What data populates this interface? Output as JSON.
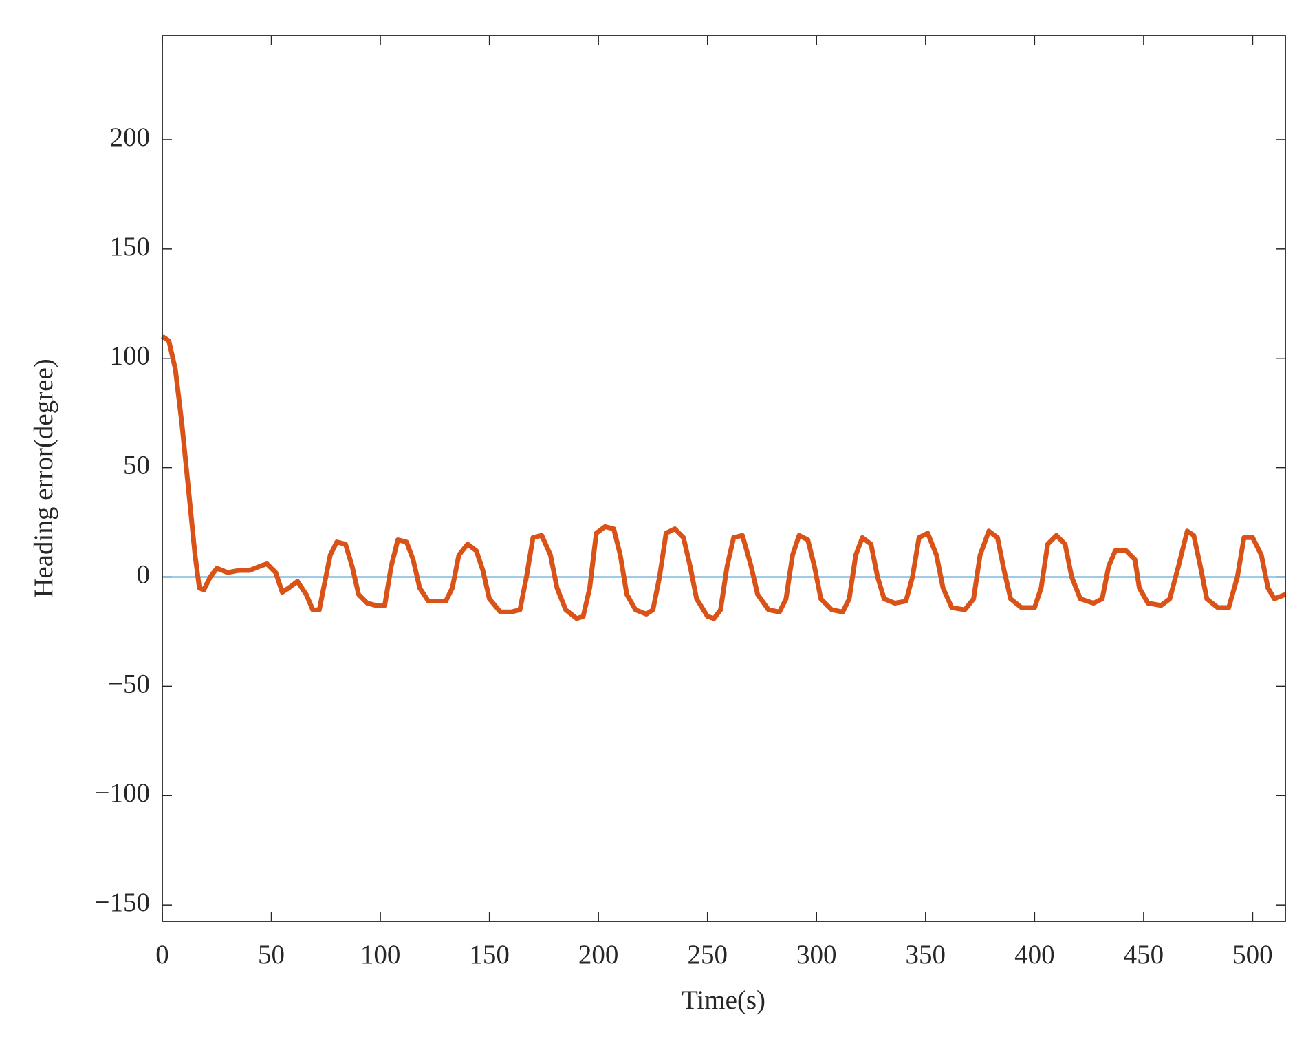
{
  "chart_data": {
    "type": "line",
    "xlabel": "Time(s)",
    "ylabel": "Heading error(degree)",
    "xlim": [
      0,
      515
    ],
    "ylim": [
      -157.5,
      247.5
    ],
    "xticks": [
      0,
      50,
      100,
      150,
      200,
      250,
      300,
      350,
      400,
      450,
      500
    ],
    "yticks": [
      {
        "value": -150,
        "label": "−150"
      },
      {
        "value": -100,
        "label": "−100"
      },
      {
        "value": -50,
        "label": "−50"
      },
      0,
      50,
      100,
      150,
      200
    ],
    "series": [
      {
        "color": "#0072bd",
        "x": [
          0,
          515
        ],
        "values": [
          0,
          0
        ]
      },
      {
        "color": "#d95319",
        "x": [
          0,
          3,
          6,
          9,
          12,
          15,
          17,
          19,
          22,
          25,
          30,
          35,
          40,
          45,
          48,
          52,
          55,
          58,
          62,
          66,
          69,
          72,
          74,
          77,
          80,
          84,
          87,
          90,
          94,
          98,
          102,
          105,
          108,
          112,
          115,
          118,
          122,
          126,
          130,
          133,
          136,
          140,
          144,
          147,
          150,
          155,
          160,
          164,
          167,
          170,
          174,
          178,
          181,
          185,
          190,
          193,
          196,
          199,
          203,
          207,
          210,
          213,
          217,
          222,
          225,
          228,
          231,
          235,
          239,
          242,
          245,
          250,
          253,
          256,
          259,
          262,
          266,
          270,
          273,
          278,
          283,
          286,
          289,
          292,
          296,
          299,
          302,
          307,
          312,
          315,
          318,
          321,
          325,
          328,
          331,
          336,
          341,
          344,
          347,
          351,
          355,
          358,
          362,
          368,
          372,
          375,
          379,
          383,
          386,
          389,
          394,
          400,
          403,
          406,
          410,
          414,
          417,
          421,
          427,
          431,
          434,
          437,
          442,
          446,
          448,
          452,
          458,
          462,
          466,
          470,
          473,
          476,
          479,
          484,
          489,
          493,
          496,
          500,
          504,
          507,
          510,
          515
        ],
        "values": [
          110,
          108,
          95,
          70,
          40,
          10,
          -5,
          -6,
          0,
          4,
          2,
          3,
          3,
          5,
          6,
          2,
          -7,
          -5,
          -2,
          -8,
          -15,
          -15,
          -5,
          10,
          16,
          15,
          5,
          -8,
          -12,
          -13,
          -13,
          5,
          17,
          16,
          8,
          -5,
          -11,
          -11,
          -11,
          -5,
          10,
          15,
          12,
          3,
          -10,
          -16,
          -16,
          -15,
          0,
          18,
          19,
          10,
          -5,
          -15,
          -19,
          -18,
          -5,
          20,
          23,
          22,
          10,
          -8,
          -15,
          -17,
          -15,
          0,
          20,
          22,
          18,
          5,
          -10,
          -18,
          -19,
          -15,
          5,
          18,
          19,
          5,
          -8,
          -15,
          -16,
          -10,
          10,
          19,
          17,
          5,
          -10,
          -15,
          -16,
          -10,
          10,
          18,
          15,
          0,
          -10,
          -12,
          -11,
          0,
          18,
          20,
          10,
          -5,
          -14,
          -15,
          -10,
          10,
          21,
          18,
          3,
          -10,
          -14,
          -14,
          -5,
          15,
          19,
          15,
          0,
          -10,
          -12,
          -10,
          5,
          12,
          12,
          8,
          -5,
          -12,
          -13,
          -10,
          5,
          21,
          19,
          5,
          -10,
          -14,
          -14,
          0,
          18,
          18,
          10,
          -5,
          -10,
          -8
        ]
      }
    ]
  }
}
